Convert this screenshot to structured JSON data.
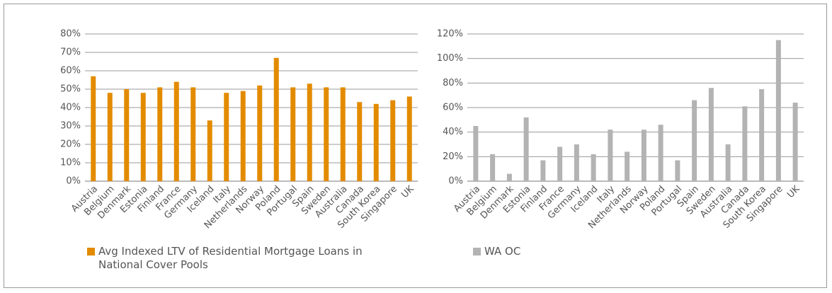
{
  "chart_data": [
    {
      "type": "bar",
      "categories": [
        "Austria",
        "Belgium",
        "Denmark",
        "Estonia",
        "Finland",
        "France",
        "Germany",
        "Iceland",
        "Italy",
        "Netherlands",
        "Norway",
        "Poland",
        "Portugal",
        "Spain",
        "Sweden",
        "Australia",
        "Canada",
        "South Korea",
        "Singapore",
        "UK"
      ],
      "series": [
        {
          "name": "Avg Indexed LTV of Residential Mortgage Loans in National Cover Pools",
          "color": "#e38b00",
          "values": [
            57,
            48,
            50,
            48,
            51,
            54,
            51,
            33,
            48,
            49,
            52,
            67,
            51,
            53,
            51,
            51,
            43,
            42,
            44,
            46
          ]
        }
      ],
      "ylim": [
        0,
        80
      ],
      "yticks": [
        {
          "value": 0,
          "label": "0%"
        },
        {
          "value": 10,
          "label": "10%"
        },
        {
          "value": 20,
          "label": "20%"
        },
        {
          "value": 30,
          "label": "30%"
        },
        {
          "value": 40,
          "label": "40%"
        },
        {
          "value": 50,
          "label": "50%"
        },
        {
          "value": 60,
          "label": "60%"
        },
        {
          "value": 70,
          "label": "70%"
        },
        {
          "value": 80,
          "label": "80%"
        }
      ],
      "grid": true
    },
    {
      "type": "bar",
      "categories": [
        "Austria",
        "Belgium",
        "Denmark",
        "Estonia",
        "Finland",
        "France",
        "Germany",
        "Iceland",
        "Italy",
        "Netherlands",
        "Norway",
        "Poland",
        "Portugal",
        "Spain",
        "Sweden",
        "Australia",
        "Canada",
        "South Korea",
        "Singapore",
        "UK"
      ],
      "series": [
        {
          "name": "WA OC",
          "color": "#b3b3b3",
          "values": [
            45,
            22,
            6,
            52,
            17,
            28,
            30,
            22,
            42,
            24,
            42,
            46,
            17,
            66,
            76,
            30,
            61,
            75,
            115,
            64
          ]
        }
      ],
      "ylim": [
        0,
        120
      ],
      "yticks": [
        {
          "value": 0,
          "label": "0%"
        },
        {
          "value": 20,
          "label": "20%"
        },
        {
          "value": 40,
          "label": "40%"
        },
        {
          "value": 60,
          "label": "60%"
        },
        {
          "value": 80,
          "label": "80%"
        },
        {
          "value": 100,
          "label": "100%"
        },
        {
          "value": 120,
          "label": "120%"
        }
      ],
      "grid": true
    }
  ]
}
